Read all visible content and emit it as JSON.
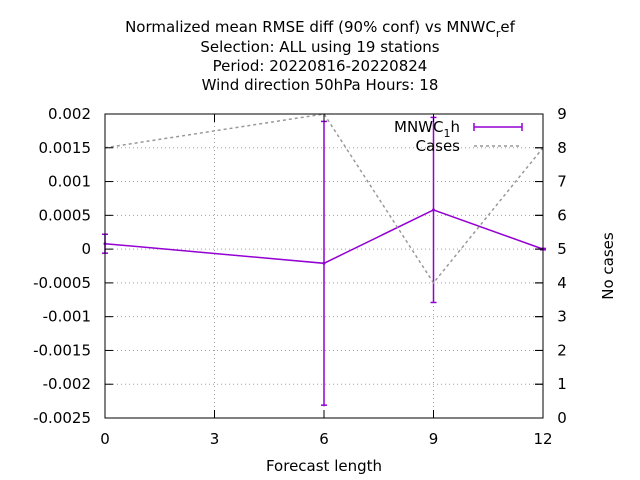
{
  "chart_data": {
    "type": "line",
    "title_lines": [
      "Normalized mean RMSE diff (90% conf) vs MNWC_ref",
      "Selection: ALL using    19 stations",
      "Period: 20220816-20220824",
      "Wind direction 50hPa   Hours:  18"
    ],
    "xlabel": "Forecast length",
    "ylabel": "",
    "y2label": "No cases",
    "xlim": [
      0,
      12
    ],
    "ylim": [
      -0.0025,
      0.002
    ],
    "y2lim": [
      0,
      9
    ],
    "x_ticks": [
      "0",
      "3",
      "6",
      "9",
      "12"
    ],
    "y_ticks": [
      "0.002",
      "0.0015",
      "0.001",
      "0.0005",
      "0",
      "-0.0005",
      "-0.001",
      "-0.0015",
      "-0.002",
      "-0.0025"
    ],
    "y2_ticks": [
      "9",
      "8",
      "7",
      "6",
      "5",
      "4",
      "3",
      "2",
      "1",
      "0"
    ],
    "grid": true,
    "legend_position": "top-right",
    "series": [
      {
        "name": "MNWC_1h",
        "axis": "y",
        "style": "errorbars",
        "color": "#9400d3",
        "x": [
          0,
          6,
          9,
          12
        ],
        "y": [
          8e-05,
          -0.00021,
          0.00058,
          0.0
        ],
        "y_low": [
          -6e-05,
          -0.00231,
          -0.00079,
          -1e-05
        ],
        "y_high": [
          0.00022,
          0.00189,
          0.00195,
          1e-05
        ]
      },
      {
        "name": "Cases",
        "axis": "y2",
        "style": "dashed",
        "color": "#999999",
        "x": [
          0,
          6,
          9,
          12
        ],
        "y": [
          8,
          9,
          4,
          8
        ]
      }
    ]
  }
}
